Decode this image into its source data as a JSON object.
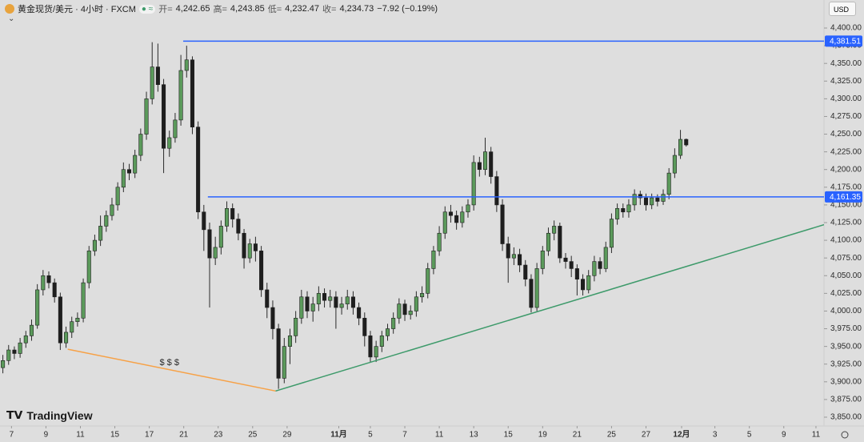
{
  "header": {
    "symbol": "黄金现货/美元 · 4小时 · FXCM",
    "open_label": "开=",
    "open": "4,242.65",
    "high_label": "高=",
    "high": "4,243.85",
    "low_label": "低=",
    "low": "4,232.47",
    "close_label": "收=",
    "close": "4,234.73",
    "change": "−7.92 (−0.19%)",
    "currency": "USD",
    "brand": "TradingView"
  },
  "chart_data": {
    "type": "candlestick",
    "up_color": "#5b9a5b",
    "down_color": "#1e1e1e",
    "wick_color": "#2a2a2a",
    "xlim": [
      -0.5,
      143
    ],
    "ylim": [
      3850,
      4400
    ],
    "xticks": [
      {
        "value": 1.5,
        "label": "7"
      },
      {
        "value": 7.5,
        "label": "9"
      },
      {
        "value": 13.5,
        "label": "11"
      },
      {
        "value": 19.5,
        "label": "15"
      },
      {
        "value": 25.5,
        "label": "17"
      },
      {
        "value": 31.5,
        "label": "21"
      },
      {
        "value": 37.5,
        "label": "23"
      },
      {
        "value": 43.5,
        "label": "25"
      },
      {
        "value": 49.5,
        "label": "29"
      },
      {
        "value": 58.5,
        "label": "11月"
      },
      {
        "value": 64,
        "label": "5"
      },
      {
        "value": 70,
        "label": "7"
      },
      {
        "value": 76,
        "label": "11"
      },
      {
        "value": 82,
        "label": "13"
      },
      {
        "value": 88,
        "label": "15"
      },
      {
        "value": 94,
        "label": "19"
      },
      {
        "value": 100,
        "label": "21"
      },
      {
        "value": 106,
        "label": "25"
      },
      {
        "value": 112,
        "label": "27"
      },
      {
        "value": 118.2,
        "label": "12月"
      },
      {
        "value": 124,
        "label": "3"
      },
      {
        "value": 130,
        "label": "5"
      },
      {
        "value": 136,
        "label": "9"
      },
      {
        "value": 141.6,
        "label": "11"
      }
    ],
    "yticks": [
      {
        "value": 3850,
        "label": "3,850.00"
      },
      {
        "value": 3875,
        "label": "3,875.00"
      },
      {
        "value": 3900,
        "label": "3,900.00"
      },
      {
        "value": 3925,
        "label": "3,925.00"
      },
      {
        "value": 3950,
        "label": "3,950.00"
      },
      {
        "value": 3975,
        "label": "3,975.00"
      },
      {
        "value": 4000,
        "label": "4,000.00"
      },
      {
        "value": 4025,
        "label": "4,025.00"
      },
      {
        "value": 4050,
        "label": "4,050.00"
      },
      {
        "value": 4075,
        "label": "4,075.00"
      },
      {
        "value": 4100,
        "label": "4,100.00"
      },
      {
        "value": 4125,
        "label": "4,125.00"
      },
      {
        "value": 4150,
        "label": "4,150.00"
      },
      {
        "value": 4175,
        "label": "4,175.00"
      },
      {
        "value": 4200,
        "label": "4,200.00"
      },
      {
        "value": 4225,
        "label": "4,225.00"
      },
      {
        "value": 4250,
        "label": "4,250.00"
      },
      {
        "value": 4275,
        "label": "4,275.00"
      },
      {
        "value": 4300,
        "label": "4,300.00"
      },
      {
        "value": 4325,
        "label": "4,325.00"
      },
      {
        "value": 4350,
        "label": "4,350.00"
      },
      {
        "value": 4375,
        "label": "4,375.00"
      },
      {
        "value": 4400,
        "label": "4,400.00"
      }
    ],
    "open": [
      3920,
      3930,
      3945,
      3940,
      3955,
      3965,
      3980,
      4030,
      4050,
      4040,
      4020,
      3955,
      3970,
      3985,
      3990,
      4040,
      4085,
      4100,
      4120,
      4135,
      4150,
      4175,
      4200,
      4195,
      4220,
      4250,
      4300,
      4345,
      4320,
      4230,
      4245,
      4270,
      4340,
      4355,
      4260,
      4140,
      4115,
      4075,
      4090,
      4120,
      4145,
      4130,
      4110,
      4075,
      4095,
      4085,
      4030,
      4005,
      3975,
      3905,
      3950,
      3965,
      3990,
      4020,
      4000,
      4010,
      4025,
      4015,
      4020,
      4005,
      4010,
      4020,
      4005,
      3990,
      3965,
      3935,
      3950,
      3965,
      3975,
      3990,
      4010,
      3995,
      4000,
      4020,
      4025,
      4060,
      4085,
      4110,
      4140,
      4135,
      4125,
      4140,
      4150,
      4210,
      4200,
      4225,
      4190,
      4150,
      4095,
      4075,
      4080,
      4065,
      4045,
      4005,
      4060,
      4085,
      4110,
      4120,
      4075,
      4070,
      4060,
      4045,
      4030,
      4050,
      4070,
      4060,
      4090,
      4130,
      4145,
      4140,
      4150,
      4165,
      4160,
      4150,
      4160,
      4155,
      4165,
      4195,
      4220,
      4242.65
    ],
    "high": [
      3938,
      3952,
      3950,
      3962,
      3972,
      3988,
      4038,
      4058,
      4056,
      4046,
      4026,
      3978,
      3992,
      3998,
      4046,
      4092,
      4108,
      4135,
      4142,
      4160,
      4182,
      4210,
      4208,
      4228,
      4258,
      4310,
      4380,
      4378,
      4328,
      4255,
      4280,
      4362,
      4375,
      4360,
      4268,
      4150,
      4125,
      4105,
      4128,
      4155,
      4152,
      4138,
      4116,
      4102,
      4105,
      4092,
      4040,
      4015,
      3982,
      3962,
      3975,
      4000,
      4030,
      4028,
      4020,
      4035,
      4032,
      4030,
      4028,
      4020,
      4030,
      4028,
      4012,
      3998,
      3972,
      3958,
      3972,
      3982,
      3998,
      4018,
      4016,
      4008,
      4028,
      4035,
      4068,
      4092,
      4120,
      4148,
      4150,
      4142,
      4148,
      4158,
      4220,
      4218,
      4245,
      4232,
      4198,
      4158,
      4105,
      4090,
      4088,
      4072,
      4052,
      4068,
      4092,
      4118,
      4128,
      4125,
      4082,
      4078,
      4066,
      4052,
      4058,
      4078,
      4076,
      4098,
      4138,
      4152,
      4152,
      4158,
      4172,
      4170,
      4166,
      4166,
      4165,
      4172,
      4202,
      4230,
      4256,
      4243.85
    ],
    "low": [
      3912,
      3924,
      3932,
      3934,
      3948,
      3958,
      3975,
      4022,
      4032,
      4012,
      3945,
      3948,
      3962,
      3978,
      3984,
      4032,
      4078,
      4092,
      4112,
      4128,
      4142,
      4168,
      4185,
      4188,
      4212,
      4242,
      4292,
      4310,
      4195,
      4218,
      4238,
      4262,
      4330,
      4250,
      4130,
      4085,
      4005,
      4065,
      4080,
      4112,
      4118,
      4100,
      4060,
      4068,
      4070,
      4020,
      3990,
      3960,
      3890,
      3898,
      3925,
      3955,
      3982,
      3990,
      3985,
      4000,
      4005,
      4005,
      3975,
      3995,
      4002,
      3995,
      3980,
      3950,
      3928,
      3928,
      3942,
      3958,
      3968,
      3982,
      3986,
      3988,
      3992,
      4012,
      4018,
      4052,
      4078,
      4102,
      4125,
      4115,
      4118,
      4132,
      4142,
      4190,
      4192,
      4180,
      4140,
      4085,
      4040,
      4065,
      4055,
      4035,
      3998,
      4000,
      4052,
      4078,
      4100,
      4068,
      4060,
      4048,
      4022,
      4022,
      4025,
      4042,
      4052,
      4055,
      4082,
      4122,
      4132,
      4132,
      4142,
      4150,
      4142,
      4144,
      4148,
      4150,
      4158,
      4188,
      4215,
      4232.47
    ],
    "close": [
      3930,
      3945,
      3940,
      3955,
      3965,
      3980,
      4030,
      4050,
      4040,
      4020,
      3955,
      3970,
      3985,
      3990,
      4040,
      4085,
      4100,
      4120,
      4135,
      4150,
      4175,
      4200,
      4195,
      4220,
      4250,
      4300,
      4345,
      4320,
      4230,
      4245,
      4270,
      4340,
      4355,
      4260,
      4140,
      4115,
      4075,
      4090,
      4120,
      4145,
      4130,
      4110,
      4075,
      4095,
      4085,
      4030,
      4005,
      3975,
      3905,
      3950,
      3965,
      3990,
      4020,
      4000,
      4010,
      4025,
      4015,
      4020,
      4005,
      4010,
      4020,
      4005,
      3990,
      3965,
      3935,
      3950,
      3965,
      3975,
      3990,
      4010,
      3995,
      4000,
      4020,
      4025,
      4060,
      4085,
      4110,
      4140,
      4135,
      4125,
      4140,
      4150,
      4210,
      4200,
      4225,
      4190,
      4150,
      4095,
      4075,
      4080,
      4065,
      4045,
      4005,
      4060,
      4085,
      4110,
      4120,
      4075,
      4070,
      4060,
      4045,
      4030,
      4050,
      4070,
      4060,
      4090,
      4130,
      4145,
      4140,
      4150,
      4165,
      4160,
      4150,
      4160,
      4155,
      4165,
      4195,
      4220,
      4242.65,
      4234.73
    ],
    "hlines": [
      {
        "value": 4381.51,
        "label": "4,381.51",
        "start": 31.4,
        "color": "#2962ff"
      },
      {
        "value": 4161.35,
        "label": "4,161.35",
        "start": 35.7,
        "color": "#2962ff"
      }
    ],
    "trendlines": [
      {
        "x1": 11.3,
        "y1": 3946,
        "x2": 47.5,
        "y2": 3887,
        "color": "#f7a146"
      },
      {
        "x1": 47.5,
        "y1": 3887,
        "x2": 143,
        "y2": 4122,
        "color": "#3d9a6a"
      }
    ],
    "annotations": [
      {
        "text": "$ $ $",
        "x": 29,
        "y": 3927
      }
    ]
  }
}
